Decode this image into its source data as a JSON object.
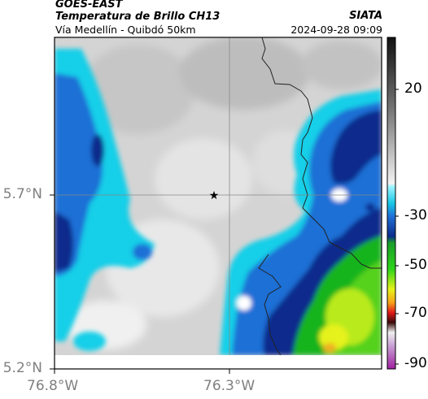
{
  "header": {
    "satellite": "GOES-EAST",
    "product": "Temperatura de Brillo CH13",
    "route": "Vía Medellín - Quibdó 50km",
    "organization": "SIATA",
    "datetime": "2024-09-28 09:09"
  },
  "map": {
    "lat_ticks": [
      "5.7°N",
      "5.2°N"
    ],
    "lon_ticks": [
      "76.8°W",
      "76.3°W"
    ],
    "colorbar_ticks": [
      "20",
      "-30",
      "-50",
      "-70",
      "-90"
    ],
    "marker": "star"
  },
  "colors": {
    "cloud_gray": "#cfcfcf",
    "cyan": "#17cfe8",
    "blue": "#1f6fd6",
    "navy": "#0b2c8c",
    "green": "#18b41f",
    "yellow": "#e6f21a"
  }
}
